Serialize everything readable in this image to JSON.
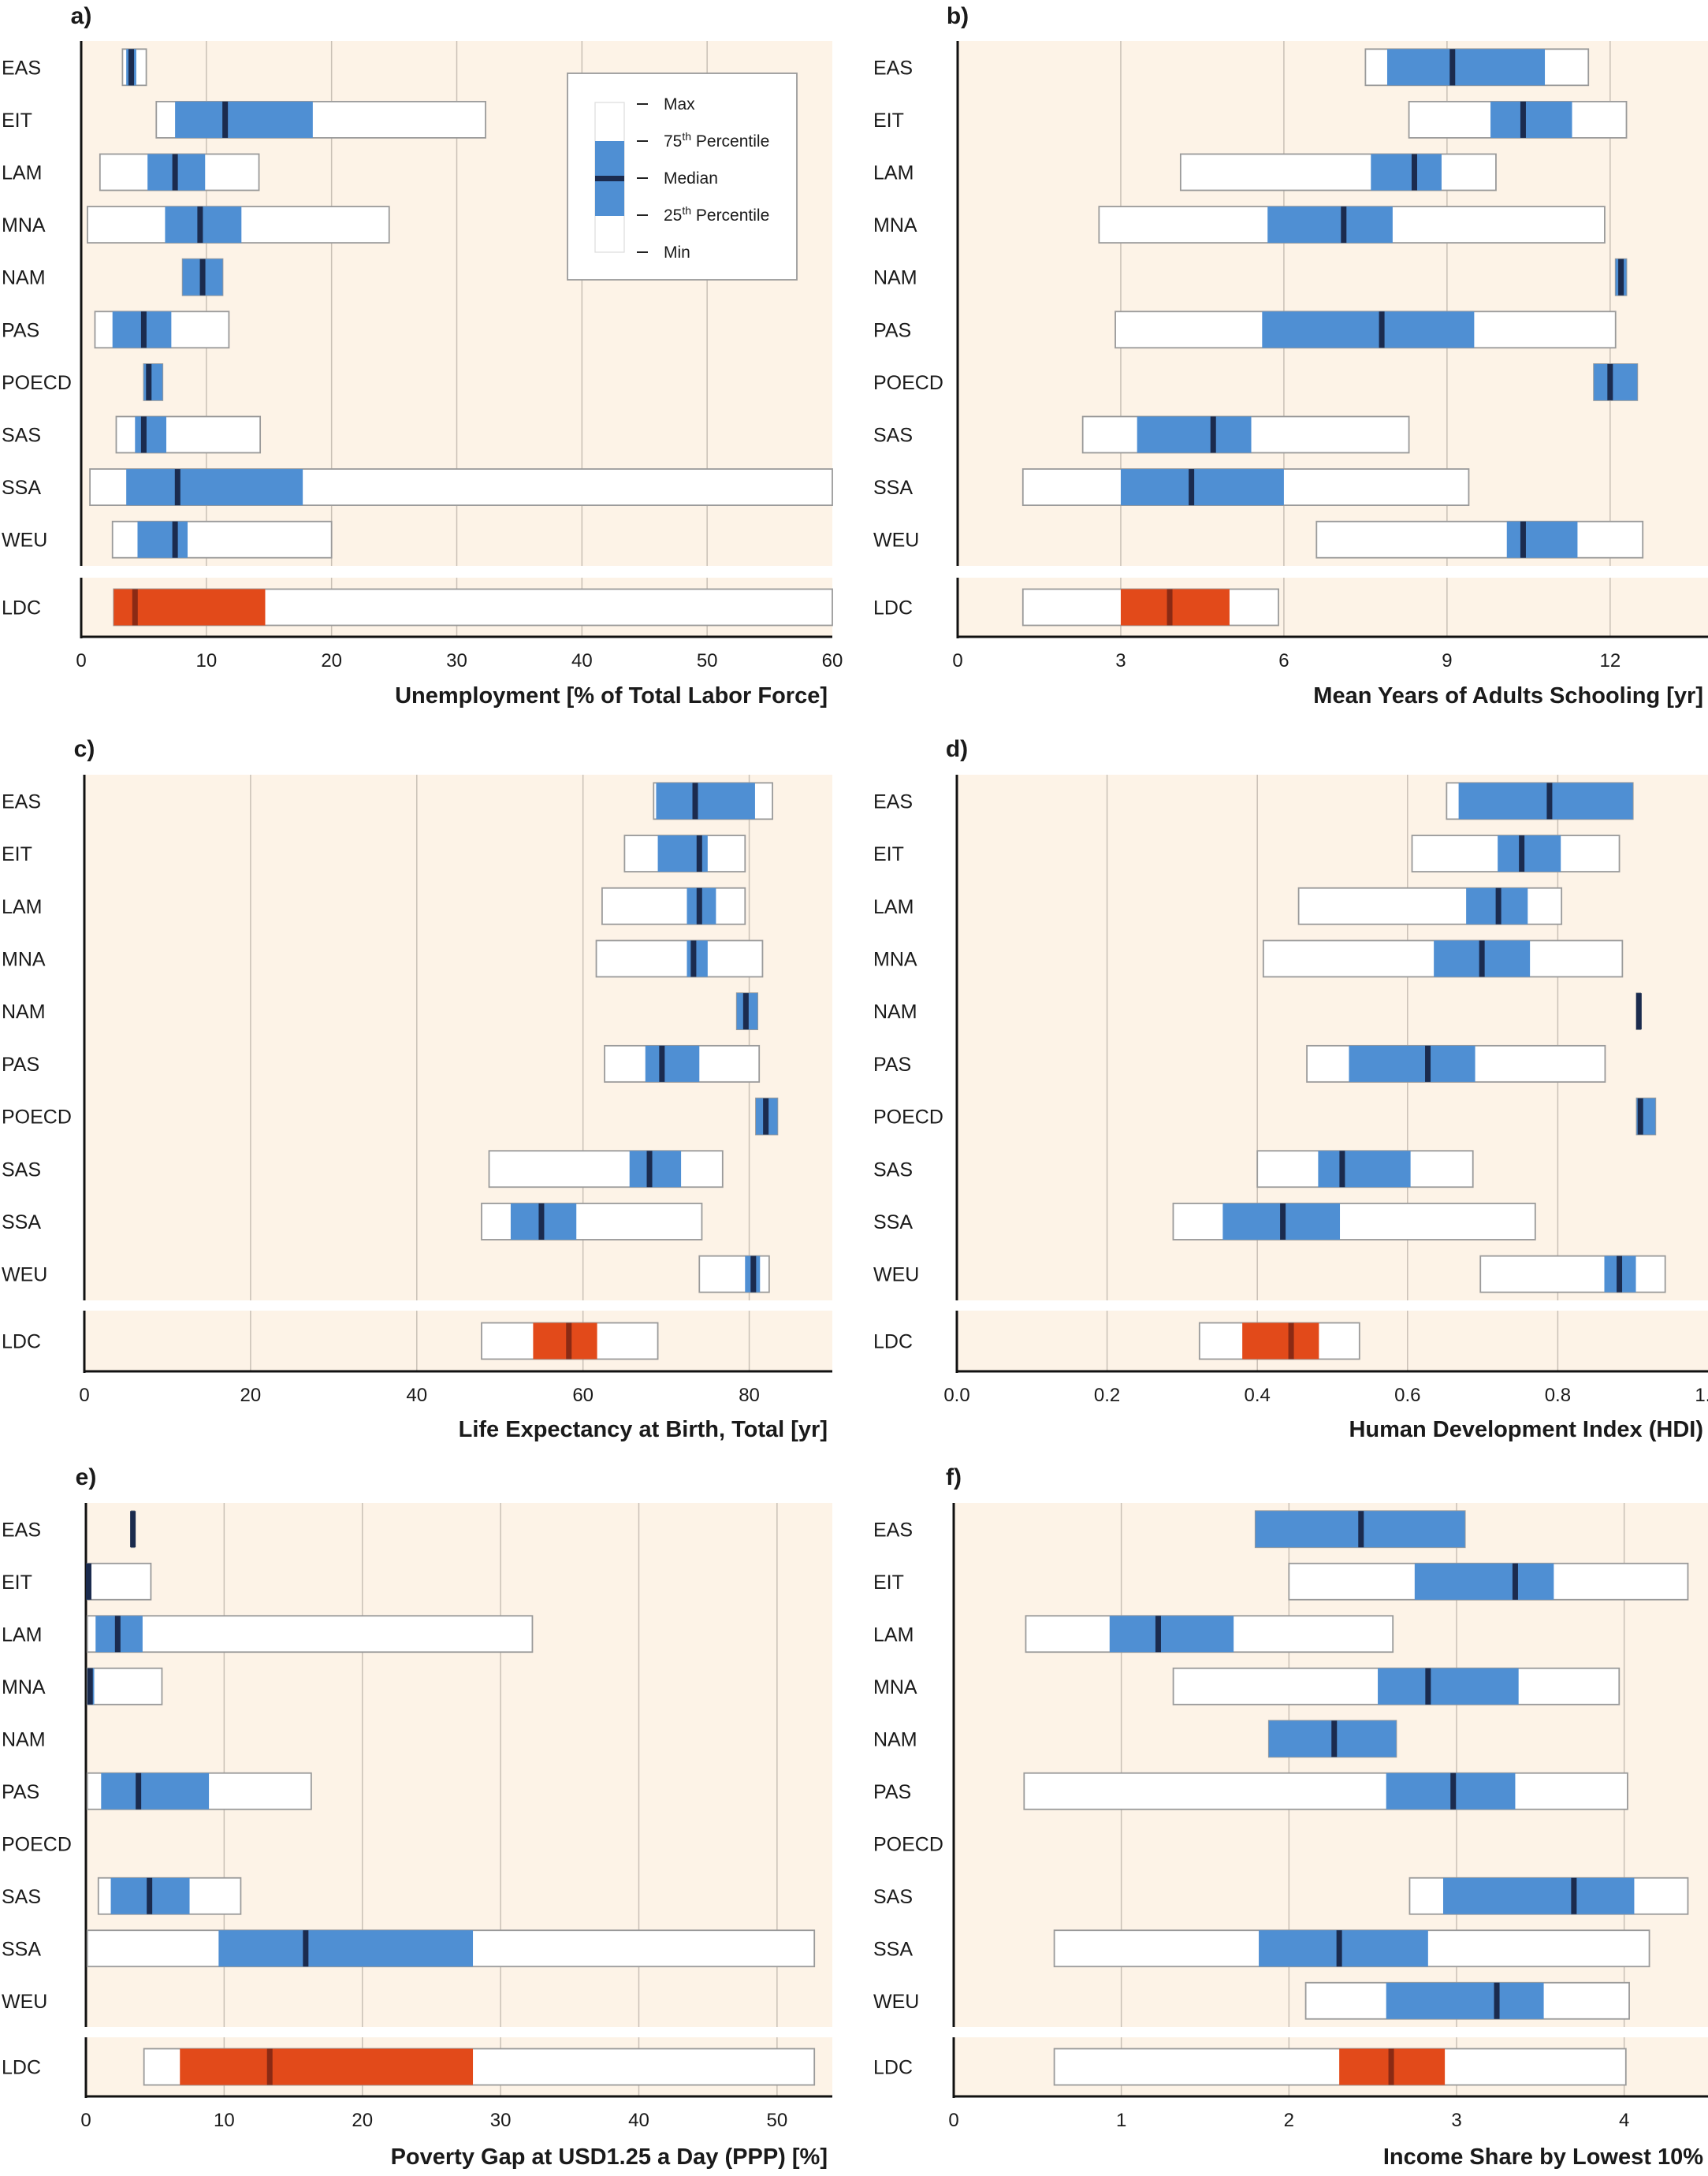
{
  "colors": {
    "background": "#fdf3e7",
    "box_white": "#ffffff",
    "box_border": "#9a9a9a",
    "iqr_blue": "#4f8fd3",
    "iqr_ldc": "#e24a1a",
    "median": "#1b2b4e",
    "median_ldc": "#8a2a14",
    "grid": "#c9c0b6",
    "axis": "#111111"
  },
  "legend": {
    "items": [
      "Max",
      "75th Percentile",
      "Median",
      "25th Percentile",
      "Min"
    ]
  },
  "chart_data": [
    {
      "panel": "a)",
      "type": "box",
      "xlabel": "Unemployment [% of Total Labor Force]",
      "xlim": [
        0,
        60
      ],
      "xticks": [
        0,
        10,
        20,
        30,
        40,
        50,
        60
      ],
      "xtick_labels": [
        "0",
        "10",
        "20",
        "30",
        "40",
        "50",
        "60"
      ],
      "categories": [
        "EAS",
        "EIT",
        "LAM",
        "MNA",
        "NAM",
        "PAS",
        "POECD",
        "SAS",
        "SSA",
        "WEU"
      ],
      "legend": true,
      "boxes": [
        {
          "min": 3.3,
          "q1": 3.6,
          "median": 4.0,
          "q3": 4.4,
          "max": 5.2
        },
        {
          "min": 6.0,
          "q1": 7.5,
          "median": 11.5,
          "q3": 18.5,
          "max": 32.3
        },
        {
          "min": 1.5,
          "q1": 5.3,
          "median": 7.5,
          "q3": 9.9,
          "max": 14.2
        },
        {
          "min": 0.5,
          "q1": 6.7,
          "median": 9.5,
          "q3": 12.8,
          "max": 24.6
        },
        {
          "min": 8.1,
          "q1": 8.1,
          "median": 9.7,
          "q3": 11.3,
          "max": 11.3
        },
        {
          "min": 1.1,
          "q1": 2.5,
          "median": 5.0,
          "q3": 7.2,
          "max": 11.8
        },
        {
          "min": 5.0,
          "q1": 5.0,
          "median": 5.4,
          "q3": 6.5,
          "max": 6.5
        },
        {
          "min": 2.8,
          "q1": 4.3,
          "median": 5.0,
          "q3": 6.8,
          "max": 14.3
        },
        {
          "min": 0.7,
          "q1": 3.6,
          "median": 7.7,
          "q3": 17.7,
          "max": 60.0
        },
        {
          "min": 2.5,
          "q1": 4.5,
          "median": 7.5,
          "q3": 8.5,
          "max": 20.0
        }
      ],
      "ldc": {
        "label": "LDC",
        "min": 2.6,
        "q1": 2.6,
        "median": 4.3,
        "q3": 14.7,
        "max": 60.0
      }
    },
    {
      "panel": "b)",
      "type": "box",
      "xlabel": "Mean Years of Adults Schooling [yr]",
      "xlim": [
        0,
        13.8
      ],
      "xticks": [
        0,
        3,
        6,
        9,
        12
      ],
      "xtick_labels": [
        "0",
        "3",
        "6",
        "9",
        "12"
      ],
      "categories": [
        "EAS",
        "EIT",
        "LAM",
        "MNA",
        "NAM",
        "PAS",
        "POECD",
        "SAS",
        "SSA",
        "WEU"
      ],
      "legend": false,
      "boxes": [
        {
          "min": 7.5,
          "q1": 7.9,
          "median": 9.1,
          "q3": 10.8,
          "max": 11.6
        },
        {
          "min": 8.3,
          "q1": 9.8,
          "median": 10.4,
          "q3": 11.3,
          "max": 12.3
        },
        {
          "min": 4.1,
          "q1": 7.6,
          "median": 8.4,
          "q3": 8.9,
          "max": 9.9
        },
        {
          "min": 2.6,
          "q1": 5.7,
          "median": 7.1,
          "q3": 8.0,
          "max": 11.9
        },
        {
          "min": 12.1,
          "q1": 12.1,
          "median": 12.2,
          "q3": 12.3,
          "max": 12.3
        },
        {
          "min": 2.9,
          "q1": 5.6,
          "median": 7.8,
          "q3": 9.5,
          "max": 12.1
        },
        {
          "min": 11.7,
          "q1": 11.7,
          "median": 12.0,
          "q3": 12.5,
          "max": 12.5
        },
        {
          "min": 2.3,
          "q1": 3.3,
          "median": 4.7,
          "q3": 5.4,
          "max": 8.3
        },
        {
          "min": 1.2,
          "q1": 3.0,
          "median": 4.3,
          "q3": 6.0,
          "max": 9.4
        },
        {
          "min": 6.6,
          "q1": 10.1,
          "median": 10.4,
          "q3": 11.4,
          "max": 12.6
        }
      ],
      "ldc": {
        "label": "LDC",
        "min": 1.2,
        "q1": 3.0,
        "median": 3.9,
        "q3": 5.0,
        "max": 5.9
      }
    },
    {
      "panel": "c)",
      "type": "box",
      "xlabel": "Life Expectancy at Birth, Total [yr]",
      "xlim": [
        0,
        90
      ],
      "xticks": [
        0,
        20,
        40,
        60,
        80
      ],
      "xtick_labels": [
        "0",
        "20",
        "40",
        "60",
        "80"
      ],
      "categories": [
        "EAS",
        "EIT",
        "LAM",
        "MNA",
        "NAM",
        "PAS",
        "POECD",
        "SAS",
        "SSA",
        "WEU"
      ],
      "legend": false,
      "boxes": [
        {
          "min": 68.5,
          "q1": 68.8,
          "median": 73.5,
          "q3": 80.7,
          "max": 82.8
        },
        {
          "min": 65.0,
          "q1": 69.0,
          "median": 74.0,
          "q3": 75.0,
          "max": 79.5
        },
        {
          "min": 62.3,
          "q1": 72.5,
          "median": 74.0,
          "q3": 76.0,
          "max": 79.5
        },
        {
          "min": 61.6,
          "q1": 72.5,
          "median": 73.3,
          "q3": 75.0,
          "max": 81.6
        },
        {
          "min": 78.5,
          "q1": 78.5,
          "median": 79.6,
          "q3": 81.0,
          "max": 81.0
        },
        {
          "min": 62.6,
          "q1": 67.5,
          "median": 69.5,
          "q3": 74.0,
          "max": 81.2
        },
        {
          "min": 80.8,
          "q1": 80.8,
          "median": 82.0,
          "q3": 83.4,
          "max": 83.4
        },
        {
          "min": 48.7,
          "q1": 65.6,
          "median": 68.0,
          "q3": 71.8,
          "max": 76.8
        },
        {
          "min": 47.8,
          "q1": 51.3,
          "median": 55.0,
          "q3": 59.2,
          "max": 74.3
        },
        {
          "min": 74.0,
          "q1": 79.5,
          "median": 80.5,
          "q3": 81.3,
          "max": 82.4
        }
      ],
      "ldc": {
        "label": "LDC",
        "min": 47.8,
        "q1": 54.0,
        "median": 58.3,
        "q3": 61.7,
        "max": 69.0
      }
    },
    {
      "panel": "d)",
      "type": "box",
      "xlabel": "Human Development Index (HDI)",
      "xlim": [
        0,
        1.0
      ],
      "xticks": [
        0.0,
        0.2,
        0.4,
        0.6,
        0.8,
        1.0
      ],
      "xtick_labels": [
        "0.0",
        "0.2",
        "0.4",
        "0.6",
        "0.8",
        "1.0"
      ],
      "categories": [
        "EAS",
        "EIT",
        "LAM",
        "MNA",
        "NAM",
        "PAS",
        "POECD",
        "SAS",
        "SSA",
        "WEU"
      ],
      "legend": false,
      "boxes": [
        {
          "min": 0.652,
          "q1": 0.668,
          "median": 0.789,
          "q3": 0.9,
          "max": 0.9
        },
        {
          "min": 0.606,
          "q1": 0.72,
          "median": 0.752,
          "q3": 0.804,
          "max": 0.882
        },
        {
          "min": 0.455,
          "q1": 0.678,
          "median": 0.721,
          "q3": 0.76,
          "max": 0.805
        },
        {
          "min": 0.408,
          "q1": 0.635,
          "median": 0.699,
          "q3": 0.763,
          "max": 0.886
        },
        {
          "min": 0.905,
          "q1": 0.905,
          "median": 0.908,
          "q3": 0.91,
          "max": 0.91
        },
        {
          "min": 0.466,
          "q1": 0.522,
          "median": 0.627,
          "q3": 0.69,
          "max": 0.863
        },
        {
          "min": 0.905,
          "q1": 0.905,
          "median": 0.91,
          "q3": 0.93,
          "max": 0.93
        },
        {
          "min": 0.4,
          "q1": 0.481,
          "median": 0.513,
          "q3": 0.604,
          "max": 0.687
        },
        {
          "min": 0.288,
          "q1": 0.354,
          "median": 0.434,
          "q3": 0.51,
          "max": 0.77
        },
        {
          "min": 0.697,
          "q1": 0.862,
          "median": 0.882,
          "q3": 0.904,
          "max": 0.943
        }
      ],
      "ldc": {
        "label": "LDC",
        "min": 0.323,
        "q1": 0.38,
        "median": 0.445,
        "q3": 0.482,
        "max": 0.536
      }
    },
    {
      "panel": "e)",
      "type": "box",
      "xlabel": "Poverty Gap at USD1.25 a Day (PPP) [%]",
      "xlim": [
        0,
        54
      ],
      "xticks": [
        0,
        10,
        20,
        30,
        40,
        50
      ],
      "xtick_labels": [
        "0",
        "10",
        "20",
        "30",
        "40",
        "50"
      ],
      "categories": [
        "EAS",
        "EIT",
        "LAM",
        "MNA",
        "NAM",
        "PAS",
        "POECD",
        "SAS",
        "SSA",
        "WEU"
      ],
      "legend": false,
      "boxes": [
        {
          "min": 3.3,
          "q1": 3.3,
          "median": 3.4,
          "q3": 3.5,
          "max": 3.5
        },
        {
          "min": 0.1,
          "q1": 0.1,
          "median": 0.2,
          "q3": 0.2,
          "max": 4.7
        },
        {
          "min": 0.1,
          "q1": 0.7,
          "median": 2.3,
          "q3": 4.1,
          "max": 32.3
        },
        {
          "min": 0.1,
          "q1": 0.1,
          "median": 0.3,
          "q3": 0.6,
          "max": 5.5
        },
        null,
        {
          "min": 0.1,
          "q1": 1.1,
          "median": 3.8,
          "q3": 8.9,
          "max": 16.3
        },
        null,
        {
          "min": 0.9,
          "q1": 1.8,
          "median": 4.6,
          "q3": 7.5,
          "max": 11.2
        },
        {
          "min": 0.1,
          "q1": 9.6,
          "median": 15.9,
          "q3": 28.0,
          "max": 52.7
        },
        null
      ],
      "ldc": {
        "label": "LDC",
        "min": 4.2,
        "q1": 6.8,
        "median": 13.3,
        "q3": 28.0,
        "max": 52.7
      }
    },
    {
      "panel": "f)",
      "type": "box",
      "xlabel": "Income Share by Lowest 10%",
      "xlim": [
        0,
        4.5
      ],
      "xticks": [
        0,
        1,
        2,
        3,
        4
      ],
      "xtick_labels": [
        "0",
        "1",
        "2",
        "3",
        "4"
      ],
      "categories": [
        "EAS",
        "EIT",
        "LAM",
        "MNA",
        "NAM",
        "PAS",
        "POECD",
        "SAS",
        "SSA",
        "WEU"
      ],
      "legend": false,
      "boxes": [
        {
          "min": 1.8,
          "q1": 1.8,
          "median": 2.43,
          "q3": 3.05,
          "max": 3.05
        },
        {
          "min": 2.0,
          "q1": 2.75,
          "median": 3.35,
          "q3": 3.58,
          "max": 4.38
        },
        {
          "min": 0.43,
          "q1": 0.93,
          "median": 1.22,
          "q3": 1.67,
          "max": 2.62
        },
        {
          "min": 1.31,
          "q1": 2.53,
          "median": 2.83,
          "q3": 3.37,
          "max": 3.97
        },
        {
          "min": 1.88,
          "q1": 1.88,
          "median": 2.27,
          "q3": 2.64,
          "max": 2.64
        },
        {
          "min": 0.42,
          "q1": 2.58,
          "median": 2.98,
          "q3": 3.35,
          "max": 4.02
        },
        null,
        {
          "min": 2.72,
          "q1": 2.92,
          "median": 3.7,
          "q3": 4.06,
          "max": 4.38
        },
        {
          "min": 0.6,
          "q1": 1.82,
          "median": 2.3,
          "q3": 2.83,
          "max": 4.15
        },
        {
          "min": 2.1,
          "q1": 2.58,
          "median": 3.24,
          "q3": 3.52,
          "max": 4.03
        }
      ],
      "ldc": {
        "label": "LDC",
        "min": 0.6,
        "q1": 2.3,
        "median": 2.61,
        "q3": 2.93,
        "max": 4.01
      }
    }
  ]
}
